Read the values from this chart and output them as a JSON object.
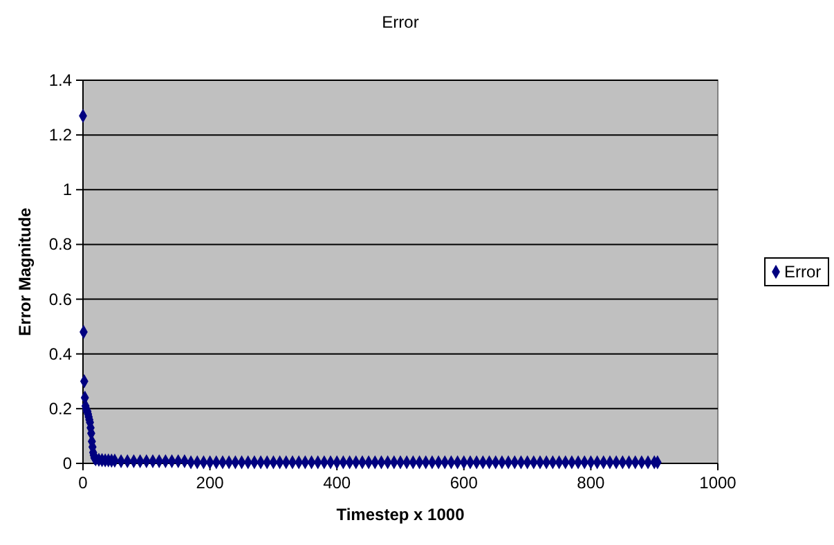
{
  "chart_data": {
    "type": "scatter",
    "title": "Error",
    "xlabel": "Timestep x 1000",
    "ylabel": "Error Magnitude",
    "xlim": [
      0,
      1000
    ],
    "xticks": [
      0,
      200,
      400,
      600,
      800,
      1000
    ],
    "ylim": [
      0,
      1.4
    ],
    "yticks": [
      0,
      0.2,
      0.4,
      0.6,
      0.8,
      1,
      1.2,
      1.4
    ],
    "grid": "y",
    "legend": "right",
    "marker": "diamond",
    "series": [
      {
        "name": "Error",
        "color": "#000080",
        "x": [
          0,
          1,
          2,
          3,
          4,
          5,
          6,
          7,
          8,
          9,
          10,
          11,
          12,
          13,
          14,
          15,
          16,
          17,
          18,
          20,
          25,
          30,
          35,
          40,
          45,
          50,
          60,
          70,
          80,
          90,
          100,
          110,
          120,
          130,
          140,
          150,
          160,
          170,
          180,
          190,
          200,
          210,
          220,
          230,
          240,
          250,
          260,
          270,
          280,
          290,
          300,
          310,
          320,
          330,
          340,
          350,
          360,
          370,
          380,
          390,
          400,
          410,
          420,
          430,
          440,
          450,
          460,
          470,
          480,
          490,
          500,
          510,
          520,
          530,
          540,
          550,
          560,
          570,
          580,
          590,
          600,
          610,
          620,
          630,
          640,
          650,
          660,
          670,
          680,
          690,
          700,
          710,
          720,
          730,
          740,
          750,
          760,
          770,
          780,
          790,
          800,
          810,
          820,
          830,
          840,
          850,
          860,
          870,
          880,
          890,
          900,
          905
        ],
        "values": [
          1.27,
          0.48,
          0.3,
          0.24,
          0.21,
          0.2,
          0.19,
          0.19,
          0.18,
          0.17,
          0.16,
          0.15,
          0.13,
          0.11,
          0.08,
          0.06,
          0.04,
          0.03,
          0.02,
          0.015,
          0.013,
          0.012,
          0.011,
          0.011,
          0.01,
          0.01,
          0.008,
          0.008,
          0.008,
          0.008,
          0.008,
          0.008,
          0.008,
          0.008,
          0.008,
          0.008,
          0.008,
          0.004,
          0.004,
          0.004,
          0.004,
          0.004,
          0.004,
          0.004,
          0.004,
          0.004,
          0.004,
          0.004,
          0.004,
          0.004,
          0.004,
          0.004,
          0.004,
          0.004,
          0.004,
          0.004,
          0.004,
          0.004,
          0.004,
          0.004,
          0.004,
          0.004,
          0.004,
          0.004,
          0.004,
          0.004,
          0.004,
          0.004,
          0.004,
          0.004,
          0.004,
          0.004,
          0.004,
          0.004,
          0.004,
          0.004,
          0.004,
          0.004,
          0.004,
          0.004,
          0.004,
          0.004,
          0.004,
          0.004,
          0.004,
          0.004,
          0.004,
          0.004,
          0.004,
          0.004,
          0.004,
          0.004,
          0.004,
          0.004,
          0.004,
          0.004,
          0.004,
          0.004,
          0.004,
          0.004,
          0.004,
          0.004,
          0.004,
          0.004,
          0.004,
          0.004,
          0.004,
          0.004,
          0.004,
          0.004,
          0.004,
          0.004
        ]
      }
    ]
  }
}
